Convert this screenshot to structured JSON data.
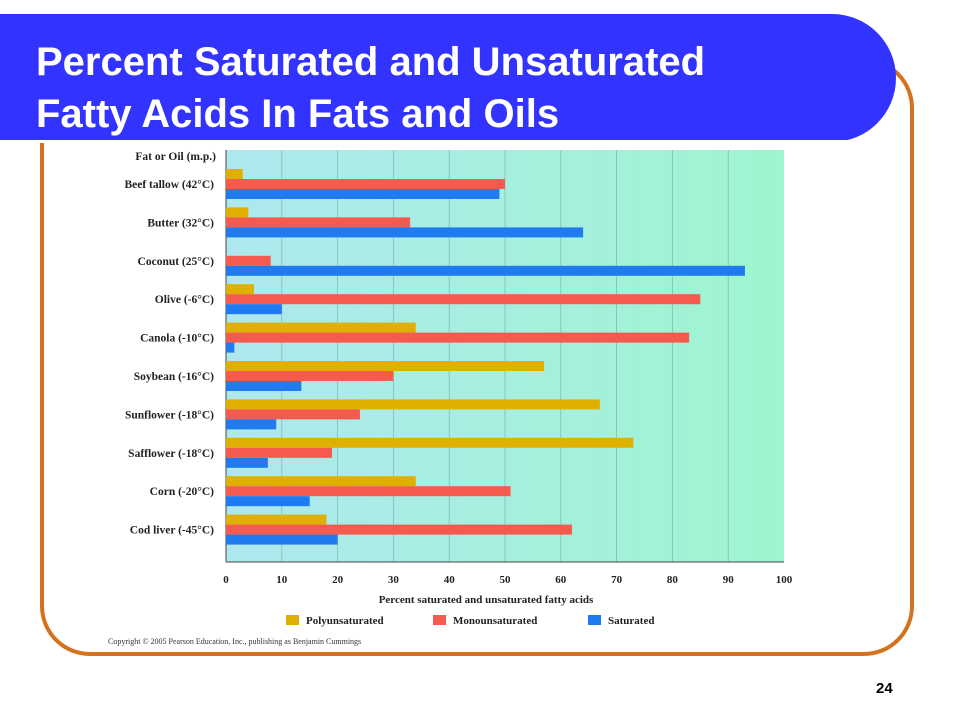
{
  "slide": {
    "title_line1": "Percent Saturated and Unsaturated",
    "title_line2": "Fatty Acids In Fats and Oils",
    "page_number": "24",
    "copyright": "Copyright © 2005 Pearson Education, Inc., publishing as Benjamin Cummings"
  },
  "colors": {
    "banner": "#3333ff",
    "frame": "#d4721f",
    "polyunsaturated": "#e0b000",
    "monounsaturated": "#f55a4e",
    "saturated": "#1f7bef"
  },
  "chart_data": {
    "type": "bar",
    "orientation": "horizontal",
    "category_header": "Fat or Oil (m.p.)",
    "xlabel": "Percent saturated and unsaturated fatty acids",
    "xlim": [
      0,
      100
    ],
    "xticks": [
      0,
      10,
      20,
      30,
      40,
      50,
      60,
      70,
      80,
      90,
      100
    ],
    "grid": true,
    "legend_position": "bottom",
    "categories": [
      "Beef tallow (42°C)",
      "Butter (32°C)",
      "Coconut (25°C)",
      "Olive (-6°C)",
      "Canola (-10°C)",
      "Soybean (-16°C)",
      "Sunflower (-18°C)",
      "Safflower (-18°C)",
      "Corn (-20°C)",
      "Cod liver (-45°C)"
    ],
    "series": [
      {
        "name": "Polyunsaturated",
        "values": [
          3,
          4,
          0,
          5,
          34,
          57,
          67,
          73,
          34,
          18
        ]
      },
      {
        "name": "Monounsaturated",
        "values": [
          50,
          33,
          8,
          85,
          83,
          30,
          24,
          19,
          51,
          62
        ]
      },
      {
        "name": "Saturated",
        "values": [
          49,
          64,
          93,
          10,
          1.5,
          13.5,
          9,
          7.5,
          15,
          20
        ]
      }
    ]
  }
}
